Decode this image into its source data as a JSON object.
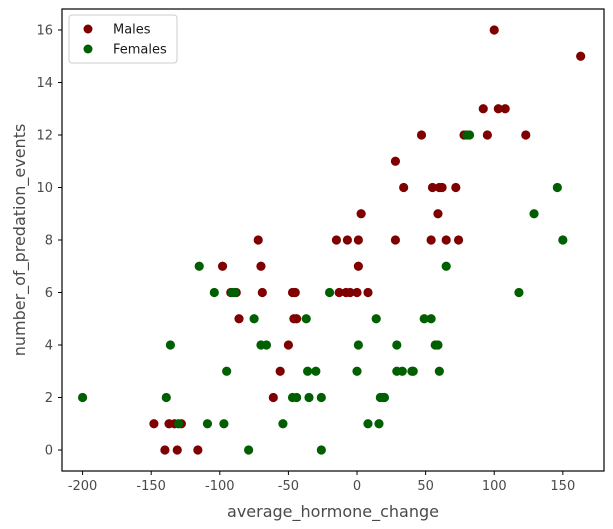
{
  "chart_data": {
    "type": "scatter",
    "title": "",
    "xlabel": "average_hormone_change",
    "ylabel": "number_of_predation_events",
    "xlim": [
      -215,
      180
    ],
    "ylim": [
      -0.8,
      16.8
    ],
    "xticks": [
      -200,
      -150,
      -100,
      -50,
      0,
      50,
      100,
      150
    ],
    "yticks": [
      0,
      2,
      4,
      6,
      8,
      10,
      12,
      14,
      16
    ],
    "grid": false,
    "legend": {
      "placement": "top-left"
    },
    "series": [
      {
        "name": "Males",
        "color": "#7f0000",
        "points": [
          [
            -148,
            1
          ],
          [
            -140,
            0
          ],
          [
            -137,
            1
          ],
          [
            -133,
            1
          ],
          [
            -131,
            0
          ],
          [
            -128,
            1
          ],
          [
            -116,
            0
          ],
          [
            -98,
            7
          ],
          [
            -92,
            6
          ],
          [
            -88,
            6
          ],
          [
            -86,
            5
          ],
          [
            -72,
            8
          ],
          [
            -70,
            7
          ],
          [
            -69,
            6
          ],
          [
            -61,
            2
          ],
          [
            -56,
            3
          ],
          [
            -50,
            4
          ],
          [
            -47,
            6
          ],
          [
            -46,
            5
          ],
          [
            -45,
            6
          ],
          [
            -44,
            5
          ],
          [
            -15,
            8
          ],
          [
            -13,
            6
          ],
          [
            -8,
            6
          ],
          [
            -7,
            8
          ],
          [
            -5,
            6
          ],
          [
            0,
            6
          ],
          [
            1,
            8
          ],
          [
            1,
            7
          ],
          [
            3,
            9
          ],
          [
            8,
            6
          ],
          [
            28,
            8
          ],
          [
            28,
            11
          ],
          [
            34,
            10
          ],
          [
            47,
            12
          ],
          [
            54,
            8
          ],
          [
            55,
            10
          ],
          [
            59,
            9
          ],
          [
            60,
            10
          ],
          [
            62,
            10
          ],
          [
            65,
            8
          ],
          [
            72,
            10
          ],
          [
            74,
            8
          ],
          [
            78,
            12
          ],
          [
            92,
            13
          ],
          [
            95,
            12
          ],
          [
            100,
            16
          ],
          [
            103,
            13
          ],
          [
            108,
            13
          ],
          [
            123,
            12
          ],
          [
            163,
            15
          ]
        ]
      },
      {
        "name": "Females",
        "color": "#005f00",
        "points": [
          [
            -200,
            2
          ],
          [
            -139,
            2
          ],
          [
            -136,
            4
          ],
          [
            -130,
            1
          ],
          [
            -115,
            7
          ],
          [
            -109,
            1
          ],
          [
            -104,
            6
          ],
          [
            -97,
            1
          ],
          [
            -95,
            3
          ],
          [
            -91,
            6
          ],
          [
            -89,
            6
          ],
          [
            -79,
            0
          ],
          [
            -75,
            5
          ],
          [
            -70,
            4
          ],
          [
            -66,
            4
          ],
          [
            -54,
            1
          ],
          [
            -47,
            2
          ],
          [
            -44,
            2
          ],
          [
            -37,
            5
          ],
          [
            -36,
            3
          ],
          [
            -35,
            2
          ],
          [
            -30,
            3
          ],
          [
            -26,
            0
          ],
          [
            -26,
            2
          ],
          [
            -20,
            6
          ],
          [
            0,
            3
          ],
          [
            1,
            4
          ],
          [
            8,
            1
          ],
          [
            14,
            5
          ],
          [
            16,
            1
          ],
          [
            17,
            2
          ],
          [
            19,
            2
          ],
          [
            20,
            2
          ],
          [
            29,
            3
          ],
          [
            29,
            4
          ],
          [
            33,
            3
          ],
          [
            40,
            3
          ],
          [
            41,
            3
          ],
          [
            49,
            5
          ],
          [
            54,
            5
          ],
          [
            57,
            4
          ],
          [
            59,
            4
          ],
          [
            60,
            3
          ],
          [
            65,
            7
          ],
          [
            80,
            12
          ],
          [
            82,
            12
          ],
          [
            118,
            6
          ],
          [
            129,
            9
          ],
          [
            146,
            10
          ],
          [
            150,
            8
          ]
        ]
      }
    ]
  }
}
